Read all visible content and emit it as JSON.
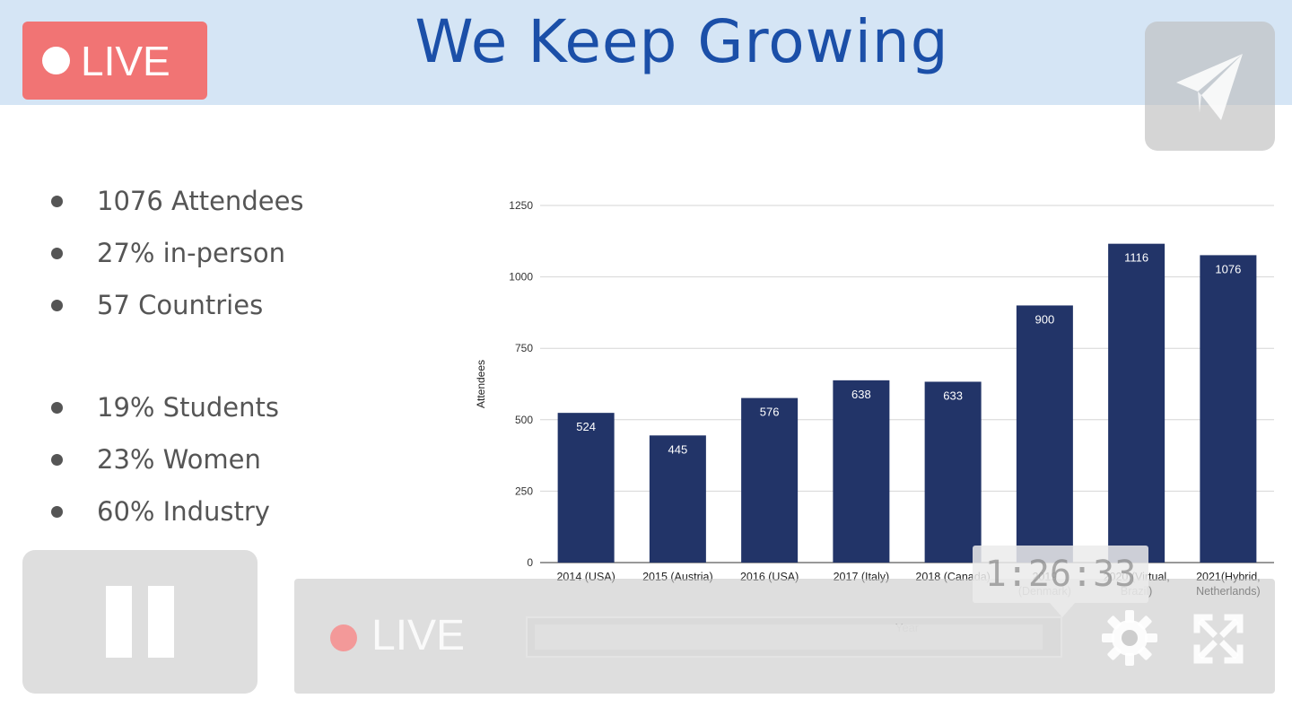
{
  "slide": {
    "title": "We Keep Growing",
    "live_label": "LIVE",
    "bullets_group1": [
      "1076 Attendees",
      "27% in-person",
      "57 Countries"
    ],
    "bullets_group2": [
      "19% Students",
      "23% Women",
      "60% Industry"
    ]
  },
  "player": {
    "live_label": "LIVE",
    "time_tooltip": "1:26:33",
    "progress": 0.98,
    "icons": {
      "share": "paper-plane-icon",
      "pause": "pause-icon",
      "settings": "gear-icon",
      "fullscreen": "fullscreen-icon"
    }
  },
  "colors": {
    "header_band": "#d5e5f5",
    "title": "#1b4fa8",
    "live_badge": "#f17474",
    "bar": "#223468"
  },
  "chart_data": {
    "type": "bar",
    "categories": [
      "2014 (USA)",
      "2015 (Austria)",
      "2016 (USA)",
      "2017 (Italy)",
      "2018 (Canada)",
      "2019 (Denmark)",
      "2020 (Virtual, Brazil)",
      "2021(Hybrid, Netherlands)"
    ],
    "category_lines": [
      [
        "2014 (USA)"
      ],
      [
        "2015 (Austria)"
      ],
      [
        "2016 (USA)"
      ],
      [
        "2017 (Italy)"
      ],
      [
        "2018 (Canada)"
      ],
      [
        "2019",
        "(Denmark)"
      ],
      [
        "2020 (Virtual,",
        "Brazil)"
      ],
      [
        "2021(Hybrid,",
        "Netherlands)"
      ]
    ],
    "values": [
      524,
      445,
      576,
      638,
      633,
      900,
      1116,
      1076
    ],
    "xlabel": "Year",
    "ylabel": "Attendees",
    "ylim": [
      0,
      1250
    ],
    "yticks": [
      0,
      250,
      500,
      750,
      1000,
      1250
    ],
    "grid": true,
    "data_labels": true
  }
}
